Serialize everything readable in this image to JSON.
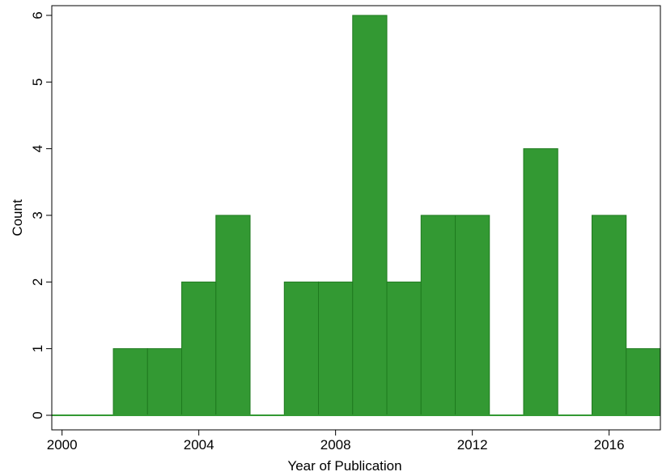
{
  "chart_data": {
    "type": "bar",
    "title": "",
    "xlabel": "Year of Publication",
    "ylabel": "Count",
    "xlim": [
      1999.7,
      2017.5
    ],
    "ylim": [
      0,
      6
    ],
    "x_ticks": [
      2000,
      2004,
      2008,
      2012,
      2016
    ],
    "y_ticks": [
      0,
      1,
      2,
      3,
      4,
      5,
      6
    ],
    "bin_width": 1,
    "bins": [
      {
        "year": 2001,
        "count": 0
      },
      {
        "year": 2002,
        "count": 1
      },
      {
        "year": 2003,
        "count": 1
      },
      {
        "year": 2004,
        "count": 2
      },
      {
        "year": 2005,
        "count": 3
      },
      {
        "year": 2006,
        "count": 0
      },
      {
        "year": 2007,
        "count": 2
      },
      {
        "year": 2008,
        "count": 2
      },
      {
        "year": 2009,
        "count": 6
      },
      {
        "year": 2010,
        "count": 2
      },
      {
        "year": 2011,
        "count": 3
      },
      {
        "year": 2012,
        "count": 3
      },
      {
        "year": 2013,
        "count": 0
      },
      {
        "year": 2014,
        "count": 4
      },
      {
        "year": 2015,
        "count": 0
      },
      {
        "year": 2016,
        "count": 3
      },
      {
        "year": 2017,
        "count": 1
      }
    ],
    "grid": false,
    "bar_color": "#339933",
    "bar_edge_color": "#1f7a1f"
  }
}
